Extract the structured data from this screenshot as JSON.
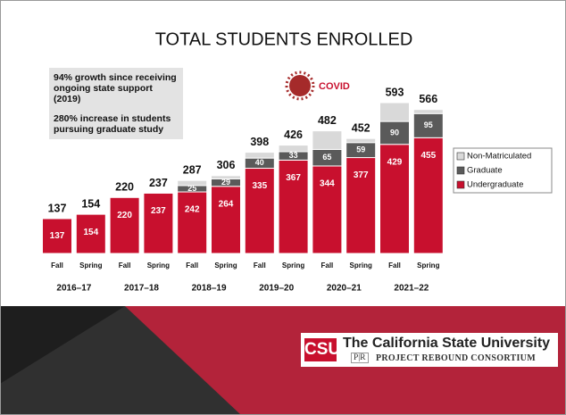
{
  "title": "TOTAL STUDENTS ENROLLED",
  "annotations": [
    "94% growth since receiving ongoing state support (2019)",
    "280% increase in students pursuing graduate study"
  ],
  "covid_label": "COVID",
  "footer": {
    "mark": "CSU",
    "university": "The California State University",
    "pr_mark": "P|R",
    "consortium": "PROJECT REBOUND CONSORTIUM"
  },
  "chart_data": {
    "type": "bar",
    "stacked": true,
    "categories": [
      "Fall",
      "Spring",
      "Fall",
      "Spring",
      "Fall",
      "Spring",
      "Fall",
      "Spring",
      "Fall",
      "Spring",
      "Fall",
      "Spring"
    ],
    "groups": [
      "2016–17",
      "2017–18",
      "2018–19",
      "2019–20",
      "2020–21",
      "2021–22"
    ],
    "series": [
      {
        "name": "Undergraduate",
        "color": "#c8102e",
        "values": [
          137,
          154,
          220,
          237,
          242,
          264,
          335,
          367,
          344,
          377,
          429,
          455
        ]
      },
      {
        "name": "Graduate",
        "color": "#5a5a5a",
        "values": [
          null,
          null,
          null,
          null,
          25,
          29,
          40,
          33,
          65,
          59,
          90,
          95
        ]
      },
      {
        "name": "Non-Matriculated",
        "color": "#d9d9d9",
        "values": [
          null,
          null,
          null,
          null,
          20,
          13,
          23,
          26,
          73,
          16,
          74,
          16
        ]
      }
    ],
    "totals": [
      137,
      154,
      220,
      237,
      287,
      306,
      398,
      426,
      482,
      452,
      593,
      566
    ],
    "legend": "right"
  }
}
